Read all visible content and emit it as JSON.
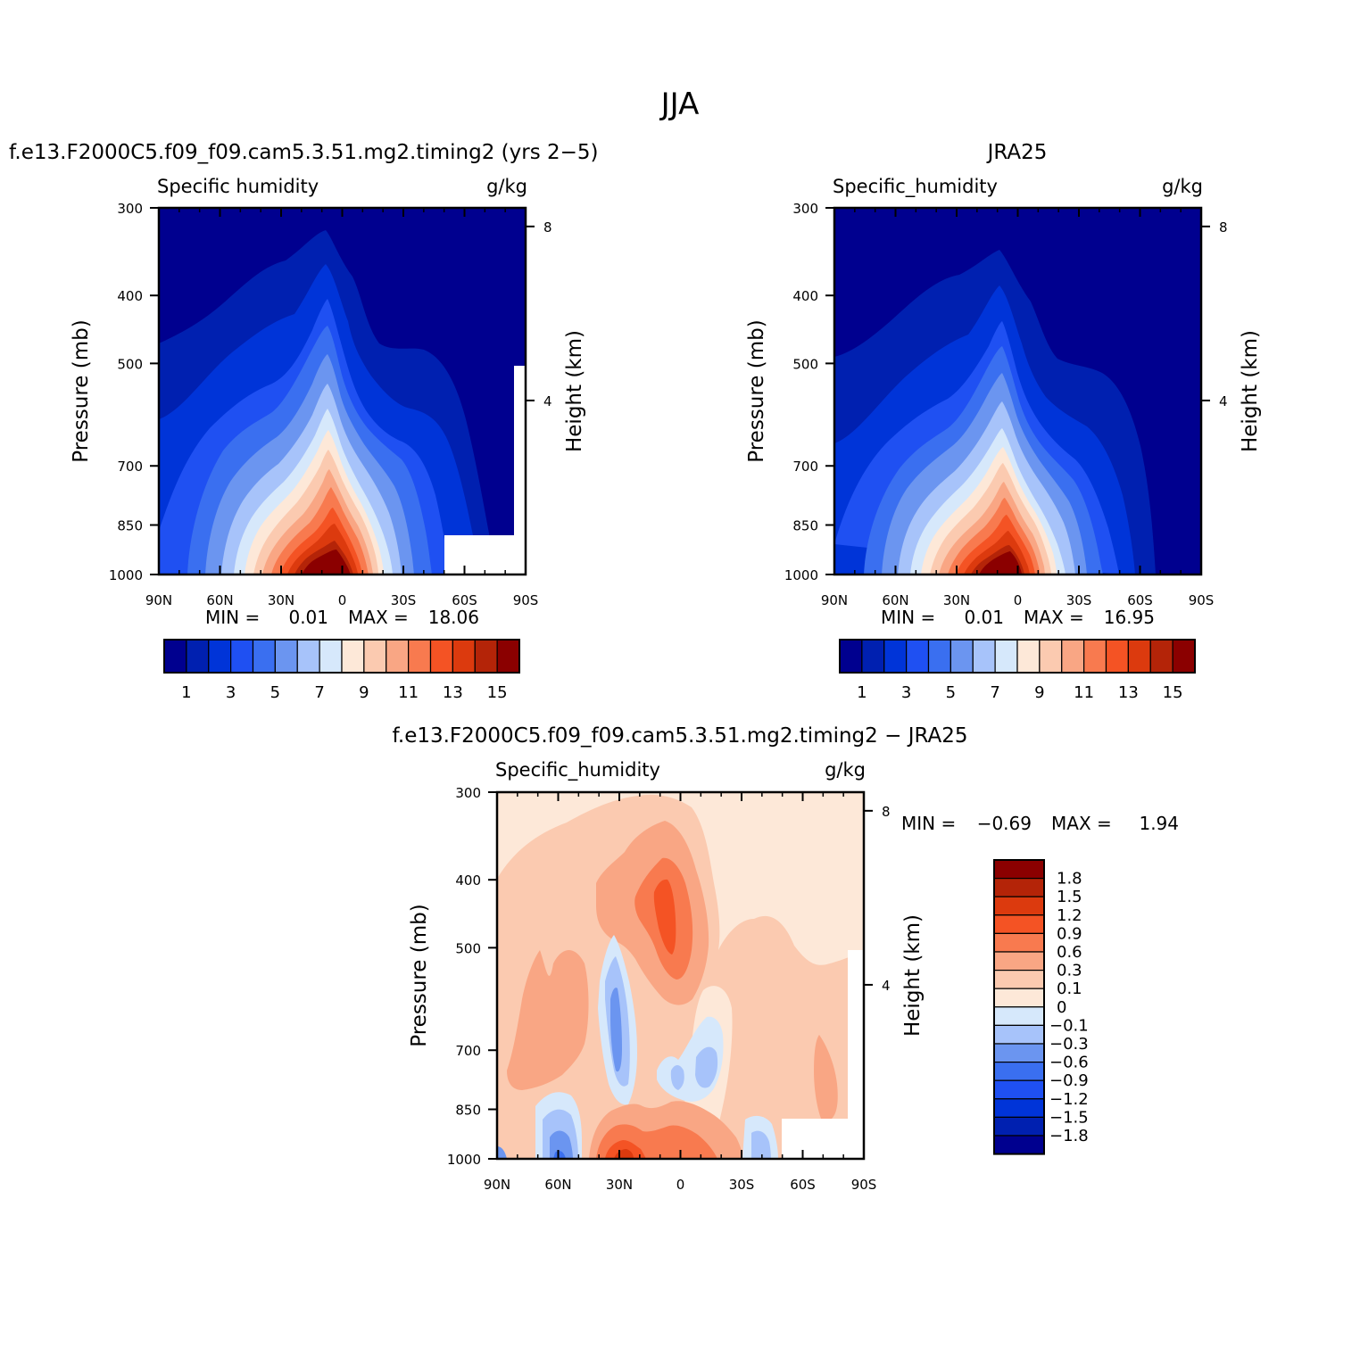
{
  "figure": {
    "title": "JJA"
  },
  "panels": {
    "model": {
      "title": "f.e13.F2000C5.f09_f09.cam5.3.51.mg2.timing2 (yrs 2−5)",
      "variable": "Specific humidity",
      "units": "g/kg",
      "ylabel": "Pressure (mb)",
      "ylabel_right": "Height (km)",
      "min_label": "MIN =",
      "min_value": "0.01",
      "max_label": "MAX =",
      "max_value": "18.06"
    },
    "obs": {
      "title": "JRA25",
      "variable": "Specific_humidity",
      "units": "g/kg",
      "ylabel": "Pressure (mb)",
      "ylabel_right": "Height (km)",
      "min_label": "MIN =",
      "min_value": "0.01",
      "max_label": "MAX =",
      "max_value": "16.95"
    },
    "diff": {
      "title": "f.e13.F2000C5.f09_f09.cam5.3.51.mg2.timing2 − JRA25",
      "variable": "Specific_humidity",
      "units": "g/kg",
      "ylabel": "Pressure (mb)",
      "ylabel_right": "Height (km)",
      "min_label": "MIN =",
      "min_value": "−0.69",
      "max_label": "MAX =",
      "max_value": "1.94"
    }
  },
  "axes": {
    "x_ticks": [
      "90N",
      "60N",
      "30N",
      "0",
      "30S",
      "60S",
      "90S"
    ],
    "x_values": [
      90,
      60,
      30,
      0,
      -30,
      -60,
      -90
    ],
    "y_ticks": [
      "300",
      "400",
      "500",
      "700",
      "850",
      "1000"
    ],
    "y_values": [
      300,
      400,
      500,
      700,
      850,
      1000
    ],
    "y_scale": "log",
    "height_ticks": [
      "8",
      "4"
    ],
    "height_values": [
      8,
      4
    ]
  },
  "colorbars": {
    "abs_labels": [
      "1",
      "3",
      "5",
      "7",
      "9",
      "11",
      "13",
      "15"
    ],
    "abs_colors": [
      "#00008f",
      "#0020b0",
      "#0034d8",
      "#1f50f2",
      "#3a6ff0",
      "#6b95f0",
      "#a7c3fa",
      "#d6e8fb",
      "#fde8d8",
      "#fbcab0",
      "#f9a684",
      "#f87a4f",
      "#f45324",
      "#dc3a0e",
      "#b42408",
      "#8b0000"
    ],
    "diff_labels": [
      "1.8",
      "1.5",
      "1.2",
      "0.9",
      "0.6",
      "0.3",
      "0.1",
      "0",
      "−0.1",
      "−0.3",
      "−0.6",
      "−0.9",
      "−1.2",
      "−1.5",
      "−1.8"
    ],
    "diff_colors": [
      "#8b0000",
      "#b42408",
      "#dc3a0e",
      "#f45324",
      "#f87a4f",
      "#f9a684",
      "#fbcab0",
      "#fde8d8",
      "#d6e8fb",
      "#a7c3fa",
      "#6b95f0",
      "#3a6ff0",
      "#1f50f2",
      "#0034d8",
      "#0020b0",
      "#00008f"
    ]
  },
  "chart_data": [
    {
      "type": "heatmap",
      "title": "f.e13.F2000C5.f09_f09.cam5.3.51.mg2.timing2 (yrs 2−5)",
      "xlabel": "",
      "ylabel": "Pressure (mb)",
      "units": "g/kg",
      "x": [
        90,
        60,
        30,
        0,
        -30,
        -60,
        -90
      ],
      "y": [
        1000,
        850,
        700,
        500,
        400,
        300
      ],
      "levels": [
        0,
        1,
        2,
        3,
        4,
        5,
        6,
        7,
        8,
        9,
        10,
        11,
        12,
        13,
        14,
        15
      ],
      "values": [
        [
          2.5,
          5.8,
          11.8,
          17.8,
          12.5,
          4.8,
          0.6
        ],
        [
          1.8,
          4.4,
          8.9,
          14.2,
          9.2,
          3.4,
          0.5
        ],
        [
          0.8,
          2.0,
          5.2,
          8.8,
          5.2,
          1.2,
          0.2
        ],
        [
          0.3,
          0.8,
          1.8,
          3.6,
          1.6,
          0.5,
          0.1
        ],
        [
          0.1,
          0.4,
          1.1,
          1.5,
          0.5,
          0.2,
          0.05
        ],
        [
          0.05,
          0.1,
          0.2,
          0.4,
          0.1,
          0.05,
          0.01
        ]
      ]
    },
    {
      "type": "heatmap",
      "title": "JRA25",
      "xlabel": "",
      "ylabel": "Pressure (mb)",
      "units": "g/kg",
      "x": [
        90,
        60,
        30,
        0,
        -30,
        -60,
        -90
      ],
      "y": [
        1000,
        850,
        700,
        500,
        400,
        300
      ],
      "levels": [
        0,
        1,
        2,
        3,
        4,
        5,
        6,
        7,
        8,
        9,
        10,
        11,
        12,
        13,
        14,
        15
      ],
      "values": [
        [
          2.5,
          5.7,
          11.0,
          16.9,
          11.4,
          4.4,
          0.6
        ],
        [
          1.8,
          4.2,
          8.4,
          13.4,
          8.6,
          3.1,
          0.5
        ],
        [
          0.8,
          1.9,
          4.9,
          8.2,
          4.8,
          1.0,
          0.2
        ],
        [
          0.3,
          0.7,
          1.6,
          3.2,
          1.4,
          0.4,
          0.1
        ],
        [
          0.1,
          0.3,
          1.0,
          1.4,
          0.4,
          0.2,
          0.05
        ],
        [
          0.05,
          0.1,
          0.2,
          0.3,
          0.1,
          0.05,
          0.01
        ]
      ]
    },
    {
      "type": "heatmap",
      "title": "f.e13.F2000C5.f09_f09.cam5.3.51.mg2.timing2 − JRA25",
      "xlabel": "",
      "ylabel": "Pressure (mb)",
      "units": "g/kg",
      "x": [
        90,
        60,
        30,
        0,
        -30,
        -60,
        -90
      ],
      "y": [
        1000,
        850,
        700,
        500,
        400,
        300
      ],
      "levels": [
        -1.8,
        -1.5,
        -1.2,
        -0.9,
        -0.6,
        -0.3,
        -0.1,
        0,
        0.1,
        0.3,
        0.6,
        0.9,
        1.2,
        1.5,
        1.8
      ],
      "values": [
        [
          0.05,
          -0.4,
          1.0,
          0.8,
          0.7,
          -0.2,
          0.05
        ],
        [
          0.3,
          0.2,
          -0.4,
          -0.2,
          -0.3,
          0.2,
          0.2
        ],
        [
          0.2,
          0.3,
          -0.5,
          0.4,
          0.05,
          0.1,
          0.1
        ],
        [
          0.1,
          0.2,
          0.2,
          0.9,
          0.05,
          0.05,
          0.05
        ],
        [
          0.1,
          0.15,
          0.3,
          0.6,
          0.05,
          0.05,
          0.05
        ],
        [
          0.02,
          0.05,
          0.05,
          0.05,
          0.05,
          0.02,
          0.02
        ]
      ]
    }
  ]
}
